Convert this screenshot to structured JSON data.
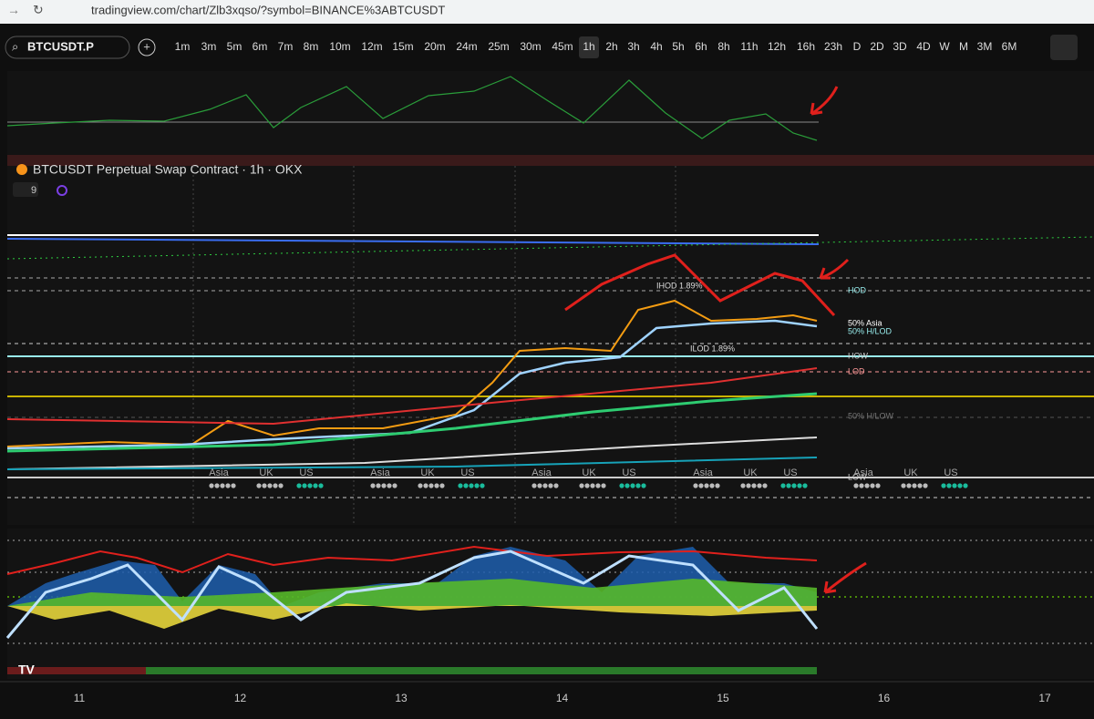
{
  "browser": {
    "url": "tradingview.com/chart/Zlb3xqso/?symbol=BINANCE%3ABTCUSDT"
  },
  "toolbar": {
    "symbol": "BTCUSDT.P",
    "timeframes": [
      "1m",
      "3m",
      "5m",
      "6m",
      "7m",
      "8m",
      "10m",
      "12m",
      "15m",
      "20m",
      "24m",
      "25m",
      "30m",
      "45m",
      "1h",
      "2h",
      "3h",
      "4h",
      "5h",
      "6h",
      "8h",
      "11h",
      "12h",
      "16h",
      "23h",
      "D",
      "2D",
      "3D",
      "4D",
      "W",
      "M",
      "3M",
      "6M"
    ],
    "active": "1h"
  },
  "chart": {
    "title": "BTCUSDT Perpetual Swap Contract · 1h · OKX",
    "indicator_count": "9",
    "levels": [
      "IHOD 1.89%",
      "ILOD 1.89%",
      "HOD",
      "50% Asia",
      "50% H/LOD",
      "HOW",
      "LOD",
      "50% H/LOW",
      "LOW"
    ],
    "sessions": [
      [
        "Asia",
        "UK",
        "US"
      ],
      [
        "Asia",
        "UK",
        "US"
      ],
      [
        "Asia",
        "UK",
        "US"
      ],
      [
        "Asia",
        "UK",
        "US"
      ],
      [
        "Asia",
        "UK",
        "US"
      ]
    ]
  },
  "x_axis": {
    "labels": [
      "11",
      "12",
      "13",
      "14",
      "15",
      "16",
      "17"
    ]
  }
}
